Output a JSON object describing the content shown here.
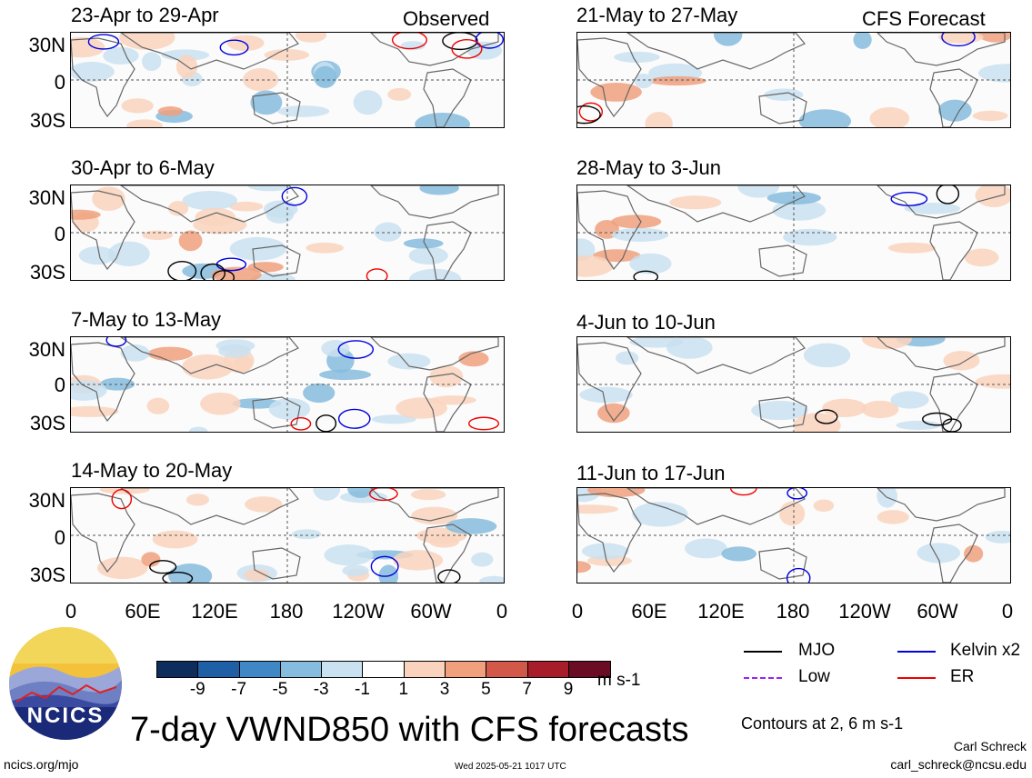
{
  "panels_left": [
    {
      "title": "23-Apr to 29-Apr",
      "tag": "Observed"
    },
    {
      "title": "30-Apr to 6-May",
      "tag": ""
    },
    {
      "title": "7-May to 13-May",
      "tag": ""
    },
    {
      "title": "14-May to 20-May",
      "tag": ""
    }
  ],
  "panels_right": [
    {
      "title": "21-May to 27-May",
      "tag": "CFS Forecast"
    },
    {
      "title": "28-May to 3-Jun",
      "tag": ""
    },
    {
      "title": "4-Jun to 10-Jun",
      "tag": ""
    },
    {
      "title": "11-Jun to 17-Jun",
      "tag": ""
    }
  ],
  "y_labels": [
    "30N",
    "0",
    "30S"
  ],
  "x_labels": [
    "0",
    "60E",
    "120E",
    "180",
    "120W",
    "60W",
    "0"
  ],
  "colorbar": {
    "ticks": [
      "-9",
      "-7",
      "-5",
      "-3",
      "-1",
      "1",
      "3",
      "5",
      "7",
      "9"
    ],
    "unit": "m s-1",
    "colors": [
      "#0d2d5c",
      "#1f5fa6",
      "#3f88c5",
      "#86bcdd",
      "#c9e1f0",
      "#ffffff",
      "#f9d3bd",
      "#f0a07c",
      "#d2594a",
      "#a81d2a",
      "#6a0d24"
    ]
  },
  "legend": {
    "mjo": "MJO",
    "kelvin": "Kelvin x2",
    "low": "Low",
    "er": "ER",
    "mjo_color": "#000000",
    "kelvin_color": "#0000e0",
    "low_color": "#a020f0",
    "er_color": "#ee0000",
    "contours": "Contours at 2, 6 m s-1"
  },
  "title": "7-day VWND850 with CFS forecasts",
  "logo": "NCICS",
  "footer": {
    "left": "ncics.org/mjo",
    "center": "Wed 2025-05-21 1017 UTC",
    "author": "Carl Schreck",
    "email": "carl_schreck@ncsu.edu"
  }
}
